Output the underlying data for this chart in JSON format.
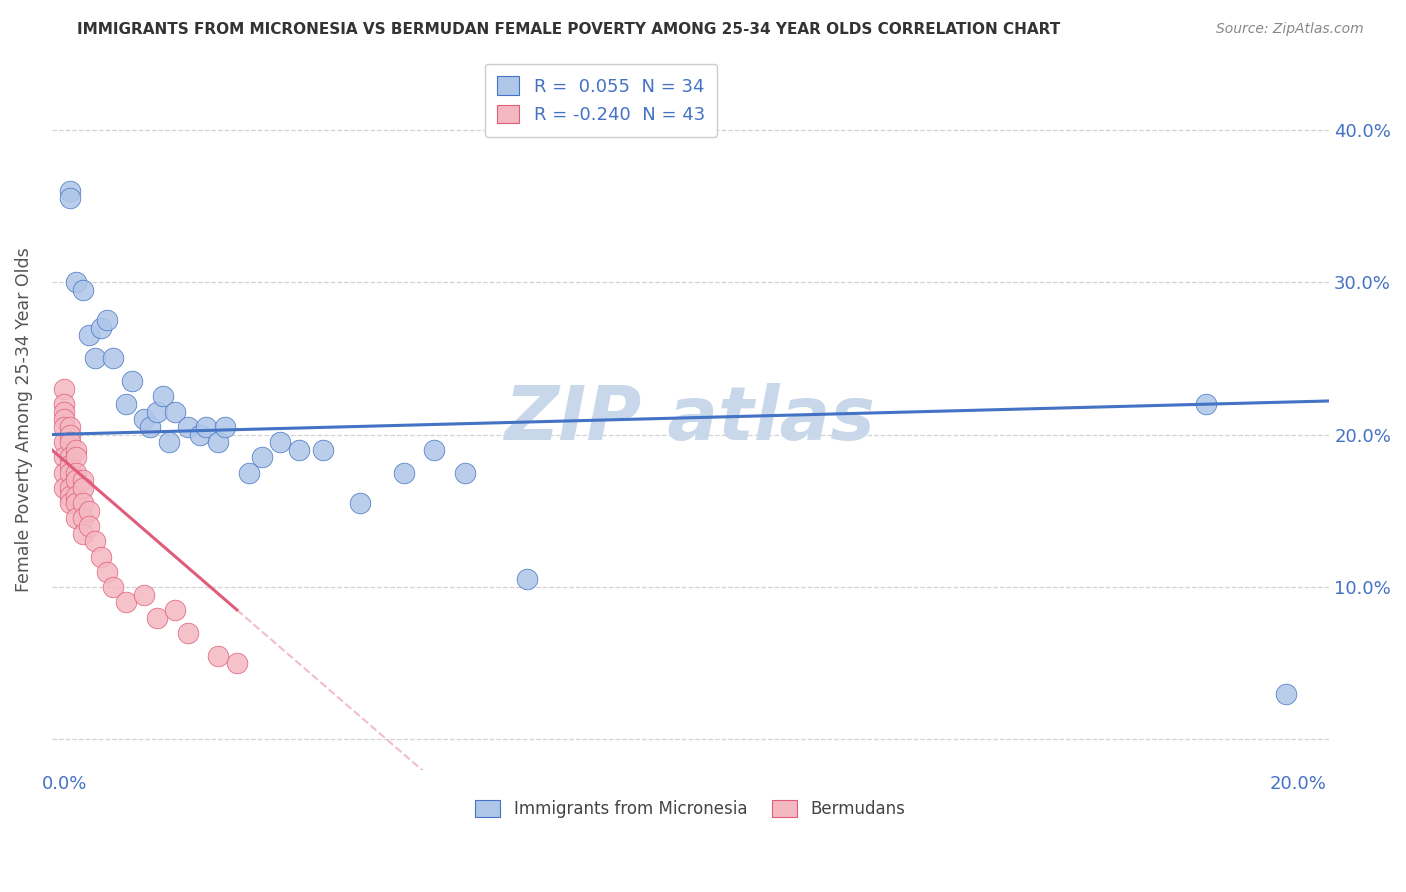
{
  "title": "IMMIGRANTS FROM MICRONESIA VS BERMUDAN FEMALE POVERTY AMONG 25-34 YEAR OLDS CORRELATION CHART",
  "source": "Source: ZipAtlas.com",
  "ylabel": "Female Poverty Among 25-34 Year Olds",
  "xlim": [
    -0.002,
    0.205
  ],
  "ylim": [
    -0.02,
    0.44
  ],
  "xticks": [
    0.0,
    0.05,
    0.1,
    0.15,
    0.2
  ],
  "xtick_labels": [
    "0.0%",
    "",
    "",
    "",
    "20.0%"
  ],
  "yticks": [
    0.0,
    0.1,
    0.2,
    0.3,
    0.4
  ],
  "ytick_labels": [
    "",
    "10.0%",
    "20.0%",
    "30.0%",
    "40.0%"
  ],
  "legend_items": [
    {
      "label": "R =  0.055  N = 34",
      "color": "#aec6e8"
    },
    {
      "label": "R = -0.240  N = 43",
      "color": "#f4b8c1"
    }
  ],
  "micronesia_x": [
    0.001,
    0.001,
    0.002,
    0.003,
    0.004,
    0.005,
    0.006,
    0.007,
    0.008,
    0.01,
    0.011,
    0.013,
    0.014,
    0.015,
    0.016,
    0.017,
    0.018,
    0.02,
    0.022,
    0.023,
    0.025,
    0.026,
    0.03,
    0.032,
    0.035,
    0.038,
    0.042,
    0.048,
    0.055,
    0.06,
    0.065,
    0.075,
    0.185,
    0.198
  ],
  "micronesia_y": [
    0.36,
    0.355,
    0.3,
    0.295,
    0.265,
    0.25,
    0.27,
    0.275,
    0.25,
    0.22,
    0.235,
    0.21,
    0.205,
    0.215,
    0.225,
    0.195,
    0.215,
    0.205,
    0.2,
    0.205,
    0.195,
    0.205,
    0.175,
    0.185,
    0.195,
    0.19,
    0.19,
    0.155,
    0.175,
    0.19,
    0.175,
    0.105,
    0.22,
    0.03
  ],
  "bermuda_x": [
    0.0,
    0.0,
    0.0,
    0.0,
    0.0,
    0.0,
    0.0,
    0.0,
    0.0,
    0.001,
    0.001,
    0.001,
    0.001,
    0.001,
    0.001,
    0.001,
    0.001,
    0.001,
    0.002,
    0.002,
    0.002,
    0.002,
    0.002,
    0.002,
    0.002,
    0.003,
    0.003,
    0.003,
    0.003,
    0.003,
    0.004,
    0.004,
    0.005,
    0.006,
    0.007,
    0.008,
    0.01,
    0.013,
    0.015,
    0.018,
    0.02,
    0.025,
    0.028
  ],
  "bermuda_y": [
    0.23,
    0.22,
    0.215,
    0.21,
    0.205,
    0.195,
    0.185,
    0.175,
    0.165,
    0.205,
    0.2,
    0.195,
    0.185,
    0.18,
    0.175,
    0.165,
    0.16,
    0.155,
    0.19,
    0.185,
    0.175,
    0.17,
    0.16,
    0.155,
    0.145,
    0.17,
    0.165,
    0.155,
    0.145,
    0.135,
    0.15,
    0.14,
    0.13,
    0.12,
    0.11,
    0.1,
    0.09,
    0.095,
    0.08,
    0.085,
    0.07,
    0.055,
    0.05
  ],
  "dot_color_micronesia": "#aec6e8",
  "dot_color_bermuda": "#f4b8c1",
  "line_color_micronesia": "#4472c4",
  "line_color_bermuda": "#e05c7a",
  "background_color": "#ffffff",
  "grid_color": "#c8c8c8",
  "title_color": "#333333",
  "axis_label_color": "#555555",
  "tick_label_color": "#4472c4",
  "watermark_color": "#c8d8ea",
  "legend_border_color": "#cccccc"
}
